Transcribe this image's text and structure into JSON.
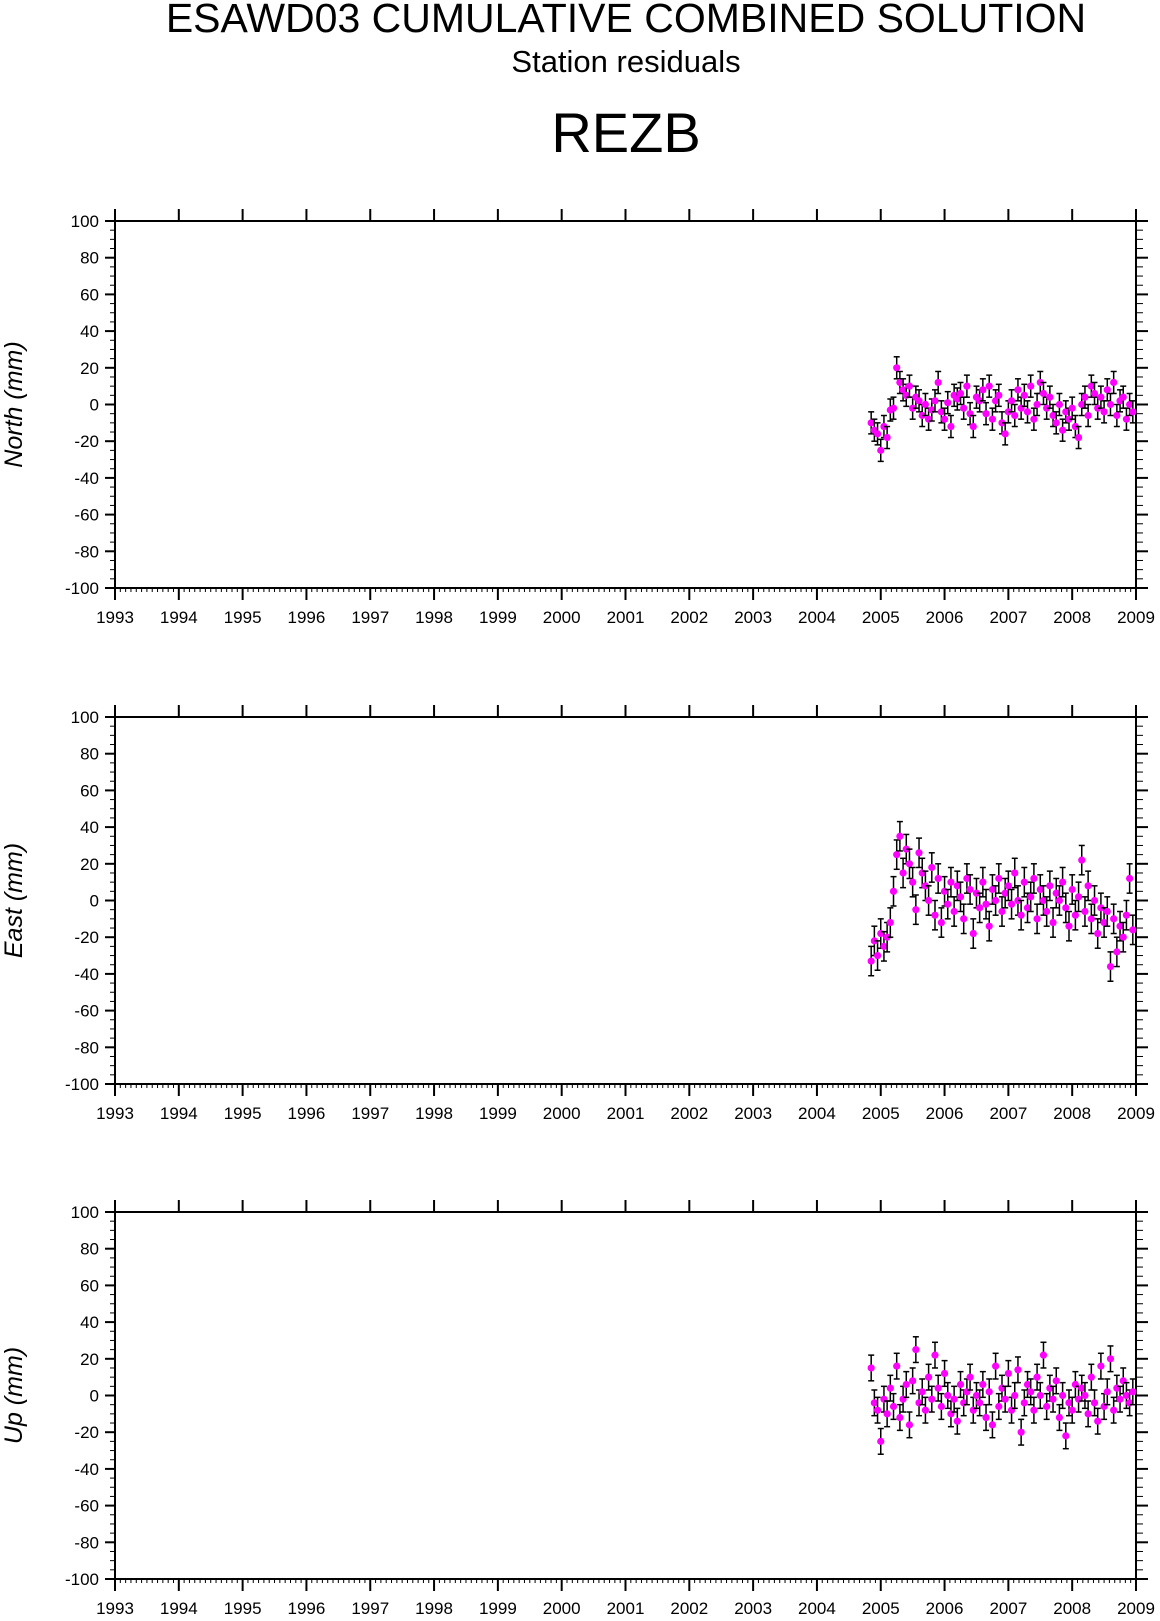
{
  "header": {
    "title": "ESAWD03 CUMULATIVE COMBINED SOLUTION",
    "subtitle": "Station residuals",
    "station": "REZB"
  },
  "colors": {
    "point": "#ff00ff",
    "errorbar": "#000000",
    "axis": "#000000"
  },
  "chart_data": [
    {
      "type": "scatter",
      "component": "north",
      "ylabel": "North (mm)",
      "xlim": [
        1993,
        2009
      ],
      "ylim": [
        -100,
        100
      ],
      "x_ticks": [
        "1993",
        "1994",
        "1995",
        "1996",
        "1997",
        "1998",
        "1999",
        "2000",
        "2001",
        "2002",
        "2003",
        "2004",
        "2005",
        "2006",
        "2007",
        "2008",
        "2009"
      ],
      "y_ticks": [
        "100",
        "80",
        "60",
        "40",
        "20",
        "0",
        "-20",
        "-40",
        "-60",
        "-80",
        "-100"
      ],
      "series": [
        {
          "x": [
            2004.85,
            2004.9,
            2004.95,
            2005.0,
            2005.05,
            2005.1,
            2005.15,
            2005.2,
            2005.25,
            2005.3,
            2005.35,
            2005.4,
            2005.45,
            2005.5,
            2005.55,
            2005.6,
            2005.65,
            2005.7,
            2005.75,
            2005.8,
            2005.85,
            2005.9,
            2005.95,
            2006.0,
            2006.05,
            2006.1,
            2006.15,
            2006.2,
            2006.25,
            2006.3,
            2006.35,
            2006.4,
            2006.45,
            2006.5,
            2006.55,
            2006.6,
            2006.65,
            2006.7,
            2006.75,
            2006.8,
            2006.85,
            2006.9,
            2006.95,
            2007.0,
            2007.05,
            2007.1,
            2007.15,
            2007.2,
            2007.25,
            2007.3,
            2007.35,
            2007.4,
            2007.45,
            2007.5,
            2007.55,
            2007.6,
            2007.65,
            2007.7,
            2007.75,
            2007.8,
            2007.85,
            2007.9,
            2007.95,
            2008.0,
            2008.05,
            2008.1,
            2008.15,
            2008.2,
            2008.25,
            2008.3,
            2008.35,
            2008.4,
            2008.45,
            2008.5,
            2008.55,
            2008.6,
            2008.65,
            2008.7,
            2008.75,
            2008.8,
            2008.85,
            2008.9,
            2008.95
          ],
          "y": [
            -10,
            -14,
            -16,
            -25,
            -12,
            -18,
            -3,
            -2,
            20,
            12,
            8,
            5,
            10,
            -2,
            4,
            2,
            -6,
            0,
            -8,
            -3,
            2,
            12,
            -4,
            -8,
            1,
            -12,
            5,
            3,
            6,
            -2,
            10,
            -5,
            -12,
            4,
            2,
            8,
            -5,
            10,
            -8,
            2,
            5,
            -10,
            -16,
            -4,
            2,
            -6,
            8,
            -2,
            5,
            -4,
            10,
            -8,
            0,
            12,
            6,
            -2,
            4,
            -6,
            -10,
            0,
            -14,
            -4,
            -8,
            -2,
            -12,
            -18,
            0,
            4,
            -6,
            10,
            6,
            -2,
            4,
            -4,
            8,
            0,
            12,
            -6,
            2,
            4,
            -8,
            0,
            -4
          ],
          "err": [
            6,
            6,
            6,
            6,
            6,
            6,
            6,
            6,
            6,
            6,
            6,
            6,
            6,
            6,
            6,
            6,
            6,
            6,
            6,
            6,
            6,
            6,
            6,
            6,
            6,
            6,
            6,
            6,
            6,
            6,
            6,
            6,
            6,
            6,
            6,
            6,
            6,
            6,
            6,
            6,
            6,
            6,
            6,
            6,
            6,
            6,
            6,
            6,
            6,
            6,
            6,
            6,
            6,
            6,
            6,
            6,
            6,
            6,
            6,
            6,
            6,
            6,
            6,
            6,
            6,
            6,
            6,
            6,
            6,
            6,
            6,
            6,
            6,
            6,
            6,
            6,
            6,
            6,
            6,
            6,
            6,
            6,
            6
          ]
        }
      ]
    },
    {
      "type": "scatter",
      "component": "east",
      "ylabel": "East (mm)",
      "xlim": [
        1993,
        2009
      ],
      "ylim": [
        -100,
        100
      ],
      "x_ticks": [
        "1993",
        "1994",
        "1995",
        "1996",
        "1997",
        "1998",
        "1999",
        "2000",
        "2001",
        "2002",
        "2003",
        "2004",
        "2005",
        "2006",
        "2007",
        "2008",
        "2009"
      ],
      "y_ticks": [
        "100",
        "80",
        "60",
        "40",
        "20",
        "0",
        "-20",
        "-40",
        "-60",
        "-80",
        "-100"
      ],
      "series": [
        {
          "x": [
            2004.85,
            2004.9,
            2004.95,
            2005.0,
            2005.05,
            2005.1,
            2005.15,
            2005.2,
            2005.25,
            2005.3,
            2005.35,
            2005.4,
            2005.45,
            2005.5,
            2005.55,
            2005.6,
            2005.65,
            2005.7,
            2005.75,
            2005.8,
            2005.85,
            2005.9,
            2005.95,
            2006.0,
            2006.05,
            2006.1,
            2006.15,
            2006.2,
            2006.25,
            2006.3,
            2006.35,
            2006.4,
            2006.45,
            2006.5,
            2006.55,
            2006.6,
            2006.65,
            2006.7,
            2006.75,
            2006.8,
            2006.85,
            2006.9,
            2006.95,
            2007.0,
            2007.05,
            2007.1,
            2007.15,
            2007.2,
            2007.25,
            2007.3,
            2007.35,
            2007.4,
            2007.45,
            2007.5,
            2007.55,
            2007.6,
            2007.65,
            2007.7,
            2007.75,
            2007.8,
            2007.85,
            2007.9,
            2007.95,
            2008.0,
            2008.05,
            2008.1,
            2008.15,
            2008.2,
            2008.25,
            2008.3,
            2008.35,
            2008.4,
            2008.45,
            2008.5,
            2008.55,
            2008.6,
            2008.65,
            2008.7,
            2008.75,
            2008.8,
            2008.85,
            2008.9,
            2008.95
          ],
          "y": [
            -33,
            -22,
            -30,
            -18,
            -25,
            -20,
            -12,
            5,
            25,
            35,
            15,
            28,
            20,
            10,
            -5,
            26,
            15,
            8,
            0,
            18,
            -8,
            12,
            -12,
            5,
            -2,
            10,
            -6,
            8,
            2,
            -10,
            12,
            6,
            -18,
            4,
            -4,
            10,
            -2,
            -14,
            6,
            0,
            12,
            -6,
            4,
            8,
            -2,
            15,
            0,
            -8,
            10,
            -4,
            2,
            12,
            -10,
            6,
            0,
            -6,
            8,
            -12,
            4,
            0,
            10,
            -4,
            -14,
            6,
            -8,
            2,
            22,
            -6,
            8,
            -10,
            0,
            -18,
            -4,
            -12,
            -6,
            -36,
            -10,
            -28,
            -14,
            -20,
            -8,
            12,
            -16
          ],
          "err": [
            8,
            8,
            8,
            8,
            8,
            8,
            8,
            8,
            8,
            8,
            8,
            8,
            8,
            8,
            8,
            8,
            8,
            8,
            8,
            8,
            8,
            8,
            8,
            8,
            8,
            8,
            8,
            8,
            8,
            8,
            8,
            8,
            8,
            8,
            8,
            8,
            8,
            8,
            8,
            8,
            8,
            8,
            8,
            8,
            8,
            8,
            8,
            8,
            8,
            8,
            8,
            8,
            8,
            8,
            8,
            8,
            8,
            8,
            8,
            8,
            8,
            8,
            8,
            8,
            8,
            8,
            8,
            8,
            8,
            8,
            8,
            8,
            8,
            8,
            8,
            8,
            8,
            8,
            8,
            8,
            8,
            8,
            8
          ]
        }
      ]
    },
    {
      "type": "scatter",
      "component": "up",
      "ylabel": "Up (mm)",
      "xlim": [
        1993,
        2009
      ],
      "ylim": [
        -100,
        100
      ],
      "x_ticks": [
        "1993",
        "1994",
        "1995",
        "1996",
        "1997",
        "1998",
        "1999",
        "2000",
        "2001",
        "2002",
        "2003",
        "2004",
        "2005",
        "2006",
        "2007",
        "2008",
        "2009"
      ],
      "y_ticks": [
        "100",
        "80",
        "60",
        "40",
        "20",
        "0",
        "-20",
        "-40",
        "-60",
        "-80",
        "-100"
      ],
      "series": [
        {
          "x": [
            2004.85,
            2004.9,
            2004.95,
            2005.0,
            2005.05,
            2005.1,
            2005.15,
            2005.2,
            2005.25,
            2005.3,
            2005.35,
            2005.4,
            2005.45,
            2005.5,
            2005.55,
            2005.6,
            2005.65,
            2005.7,
            2005.75,
            2005.8,
            2005.85,
            2005.9,
            2005.95,
            2006.0,
            2006.05,
            2006.1,
            2006.15,
            2006.2,
            2006.25,
            2006.3,
            2006.35,
            2006.4,
            2006.45,
            2006.5,
            2006.55,
            2006.6,
            2006.65,
            2006.7,
            2006.75,
            2006.8,
            2006.85,
            2006.9,
            2006.95,
            2007.0,
            2007.05,
            2007.1,
            2007.15,
            2007.2,
            2007.25,
            2007.3,
            2007.35,
            2007.4,
            2007.45,
            2007.5,
            2007.55,
            2007.6,
            2007.65,
            2007.7,
            2007.75,
            2007.8,
            2007.85,
            2007.9,
            2007.95,
            2008.0,
            2008.05,
            2008.1,
            2008.15,
            2008.2,
            2008.25,
            2008.3,
            2008.35,
            2008.4,
            2008.45,
            2008.5,
            2008.55,
            2008.6,
            2008.65,
            2008.7,
            2008.75,
            2008.8,
            2008.85,
            2008.9,
            2008.95
          ],
          "y": [
            15,
            -4,
            -8,
            -25,
            -2,
            -10,
            4,
            -6,
            16,
            -12,
            -2,
            6,
            -16,
            8,
            25,
            -4,
            2,
            -8,
            10,
            -2,
            22,
            4,
            -6,
            12,
            0,
            -10,
            -2,
            -14,
            6,
            -4,
            2,
            10,
            -8,
            0,
            -4,
            6,
            -12,
            2,
            -16,
            16,
            -6,
            4,
            -2,
            12,
            -8,
            0,
            14,
            -20,
            -4,
            6,
            2,
            -8,
            10,
            0,
            22,
            -6,
            4,
            -2,
            8,
            -12,
            0,
            -22,
            -4,
            -8,
            6,
            -2,
            4,
            0,
            -10,
            10,
            -4,
            -14,
            16,
            -6,
            2,
            20,
            -8,
            4,
            -2,
            8,
            0,
            -4,
            2
          ],
          "err": [
            7,
            7,
            7,
            7,
            7,
            7,
            7,
            7,
            7,
            7,
            7,
            7,
            7,
            7,
            7,
            7,
            7,
            7,
            7,
            7,
            7,
            7,
            7,
            7,
            7,
            7,
            7,
            7,
            7,
            7,
            7,
            7,
            7,
            7,
            7,
            7,
            7,
            7,
            7,
            7,
            7,
            7,
            7,
            7,
            7,
            7,
            7,
            7,
            7,
            7,
            7,
            7,
            7,
            7,
            7,
            7,
            7,
            7,
            7,
            7,
            7,
            7,
            7,
            7,
            7,
            7,
            7,
            7,
            7,
            7,
            7,
            7,
            7,
            7,
            7,
            7,
            7,
            7,
            7,
            7,
            7,
            7,
            7
          ]
        }
      ]
    }
  ]
}
